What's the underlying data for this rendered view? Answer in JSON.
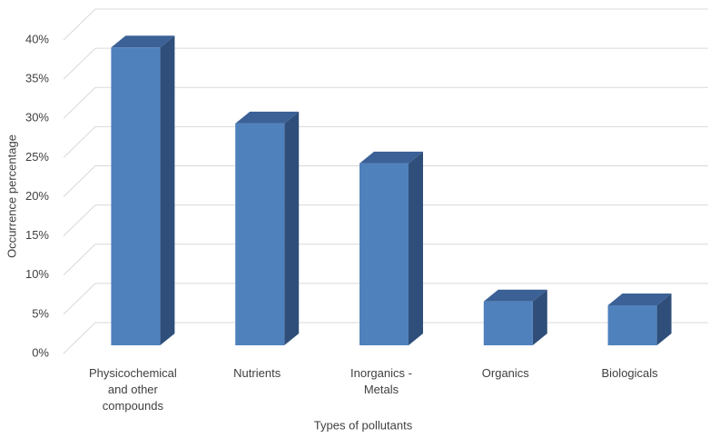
{
  "chart_data": {
    "type": "bar",
    "x_label": "Types of pollutants",
    "y_label": "Occurrence percentage",
    "categories": [
      "Physicochemical and other compounds",
      "Nutrients",
      "Inorganics - Metals",
      "Organics",
      "Biologicals"
    ],
    "values": [
      38,
      28.3,
      23.2,
      5.6,
      5.1
    ],
    "color": "#4f81bd",
    "ylim": [
      0,
      40
    ],
    "yticks": [
      {
        "value": 0,
        "label": "0%"
      },
      {
        "value": 5,
        "label": "5%"
      },
      {
        "value": 10,
        "label": "10%"
      },
      {
        "value": 15,
        "label": "15%"
      },
      {
        "value": 20,
        "label": "20%"
      },
      {
        "value": 25,
        "label": "25%"
      },
      {
        "value": 30,
        "label": "30%"
      },
      {
        "value": 35,
        "label": "35%"
      },
      {
        "value": 40,
        "label": "40%"
      }
    ],
    "grid": true
  }
}
